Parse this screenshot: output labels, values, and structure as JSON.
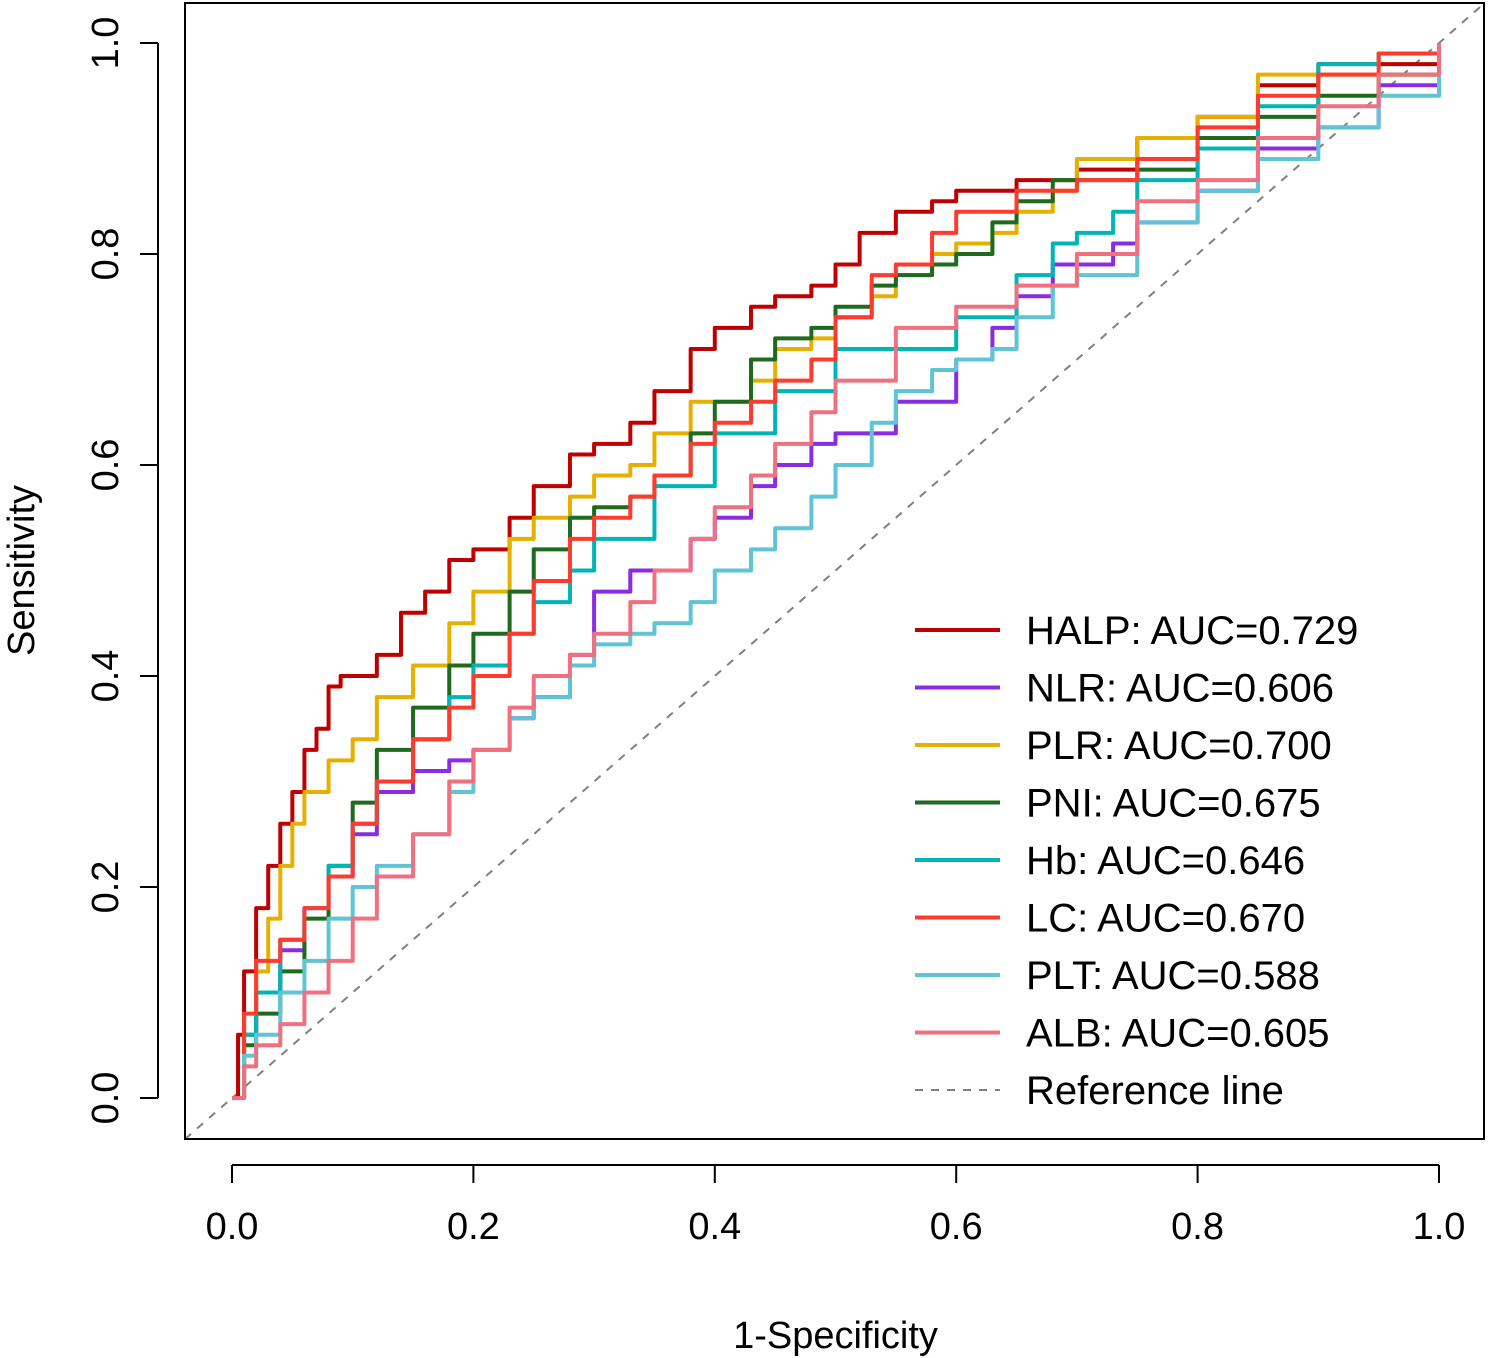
{
  "chart_data": {
    "type": "line",
    "title": "",
    "xlabel": "1-Specificity",
    "ylabel": "Sensitivity",
    "xlim": [
      0,
      1
    ],
    "ylim": [
      0,
      1
    ],
    "x_ticks": [
      "0.0",
      "0.2",
      "0.4",
      "0.6",
      "0.8",
      "1.0"
    ],
    "y_ticks": [
      "0.0",
      "0.2",
      "0.4",
      "0.6",
      "0.8",
      "1.0"
    ],
    "grid": false,
    "legend_position": "bottom-right",
    "series": [
      {
        "name": "HALP",
        "label": "HALP: AUC=0.729",
        "color": "#C00000",
        "x": [
          0,
          0.005,
          0.01,
          0.02,
          0.03,
          0.04,
          0.05,
          0.06,
          0.07,
          0.08,
          0.09,
          0.1,
          0.12,
          0.14,
          0.16,
          0.18,
          0.2,
          0.23,
          0.25,
          0.28,
          0.3,
          0.33,
          0.35,
          0.38,
          0.4,
          0.43,
          0.45,
          0.48,
          0.5,
          0.52,
          0.55,
          0.58,
          0.6,
          0.65,
          0.7,
          0.75,
          0.8,
          0.85,
          0.9,
          0.95,
          1.0
        ],
        "y": [
          0,
          0.06,
          0.12,
          0.18,
          0.22,
          0.26,
          0.29,
          0.33,
          0.35,
          0.39,
          0.4,
          0.4,
          0.42,
          0.46,
          0.48,
          0.51,
          0.52,
          0.55,
          0.58,
          0.61,
          0.62,
          0.64,
          0.67,
          0.71,
          0.73,
          0.75,
          0.76,
          0.77,
          0.79,
          0.82,
          0.84,
          0.85,
          0.86,
          0.87,
          0.88,
          0.91,
          0.93,
          0.96,
          0.98,
          0.98,
          1.0
        ]
      },
      {
        "name": "NLR",
        "label": "NLR: AUC=0.606",
        "color": "#8B2BE2",
        "x": [
          0,
          0.01,
          0.02,
          0.04,
          0.06,
          0.08,
          0.1,
          0.12,
          0.15,
          0.18,
          0.2,
          0.23,
          0.25,
          0.28,
          0.3,
          0.33,
          0.35,
          0.38,
          0.4,
          0.43,
          0.45,
          0.48,
          0.5,
          0.55,
          0.6,
          0.63,
          0.65,
          0.68,
          0.7,
          0.73,
          0.75,
          0.8,
          0.85,
          0.9,
          0.95,
          1.0
        ],
        "y": [
          0,
          0.06,
          0.1,
          0.14,
          0.18,
          0.21,
          0.25,
          0.29,
          0.31,
          0.32,
          0.33,
          0.36,
          0.38,
          0.42,
          0.48,
          0.5,
          0.5,
          0.53,
          0.55,
          0.58,
          0.6,
          0.62,
          0.63,
          0.66,
          0.7,
          0.73,
          0.76,
          0.79,
          0.79,
          0.81,
          0.83,
          0.86,
          0.9,
          0.92,
          0.96,
          1.0
        ]
      },
      {
        "name": "PLR",
        "label": "PLR: AUC=0.700",
        "color": "#E6B000",
        "x": [
          0,
          0.01,
          0.02,
          0.03,
          0.04,
          0.05,
          0.06,
          0.08,
          0.1,
          0.12,
          0.15,
          0.18,
          0.2,
          0.23,
          0.25,
          0.28,
          0.3,
          0.33,
          0.35,
          0.38,
          0.4,
          0.43,
          0.45,
          0.48,
          0.5,
          0.53,
          0.55,
          0.58,
          0.6,
          0.63,
          0.65,
          0.68,
          0.7,
          0.75,
          0.8,
          0.85,
          0.9,
          0.95,
          1.0
        ],
        "y": [
          0,
          0.06,
          0.12,
          0.17,
          0.22,
          0.26,
          0.29,
          0.32,
          0.34,
          0.38,
          0.41,
          0.45,
          0.48,
          0.53,
          0.55,
          0.57,
          0.59,
          0.6,
          0.63,
          0.66,
          0.66,
          0.68,
          0.71,
          0.72,
          0.74,
          0.76,
          0.78,
          0.8,
          0.81,
          0.82,
          0.84,
          0.86,
          0.89,
          0.91,
          0.93,
          0.97,
          0.97,
          0.97,
          0.98
        ]
      },
      {
        "name": "PNI",
        "label": "PNI: AUC=0.675",
        "color": "#1E6B1E",
        "x": [
          0,
          0.01,
          0.02,
          0.04,
          0.06,
          0.08,
          0.1,
          0.12,
          0.15,
          0.18,
          0.2,
          0.23,
          0.25,
          0.28,
          0.3,
          0.33,
          0.35,
          0.38,
          0.4,
          0.43,
          0.45,
          0.48,
          0.5,
          0.53,
          0.55,
          0.58,
          0.6,
          0.63,
          0.65,
          0.68,
          0.7,
          0.75,
          0.8,
          0.85,
          0.9,
          0.95,
          1.0
        ],
        "y": [
          0,
          0.05,
          0.08,
          0.12,
          0.17,
          0.22,
          0.28,
          0.33,
          0.37,
          0.41,
          0.44,
          0.48,
          0.52,
          0.55,
          0.56,
          0.57,
          0.59,
          0.63,
          0.66,
          0.7,
          0.72,
          0.73,
          0.75,
          0.77,
          0.78,
          0.79,
          0.8,
          0.83,
          0.85,
          0.87,
          0.87,
          0.88,
          0.91,
          0.93,
          0.95,
          0.97,
          1.0
        ]
      },
      {
        "name": "Hb",
        "label": "Hb: AUC=0.646",
        "color": "#00B5B5",
        "x": [
          0,
          0.01,
          0.02,
          0.04,
          0.06,
          0.08,
          0.1,
          0.12,
          0.15,
          0.18,
          0.2,
          0.23,
          0.25,
          0.28,
          0.3,
          0.35,
          0.4,
          0.45,
          0.5,
          0.55,
          0.6,
          0.65,
          0.68,
          0.7,
          0.73,
          0.75,
          0.8,
          0.85,
          0.9,
          0.95,
          1.0
        ],
        "y": [
          0,
          0.06,
          0.1,
          0.15,
          0.18,
          0.22,
          0.26,
          0.3,
          0.34,
          0.38,
          0.41,
          0.44,
          0.47,
          0.5,
          0.53,
          0.58,
          0.63,
          0.67,
          0.71,
          0.71,
          0.74,
          0.78,
          0.81,
          0.82,
          0.84,
          0.87,
          0.9,
          0.94,
          0.98,
          0.99,
          1.0
        ]
      },
      {
        "name": "LC",
        "label": "LC: AUC=0.670",
        "color": "#FF3B2F",
        "x": [
          0,
          0.01,
          0.02,
          0.04,
          0.06,
          0.08,
          0.1,
          0.12,
          0.15,
          0.18,
          0.2,
          0.23,
          0.25,
          0.28,
          0.3,
          0.33,
          0.35,
          0.38,
          0.4,
          0.43,
          0.45,
          0.48,
          0.5,
          0.53,
          0.55,
          0.58,
          0.6,
          0.63,
          0.65,
          0.7,
          0.75,
          0.8,
          0.85,
          0.9,
          0.95,
          1.0
        ],
        "y": [
          0,
          0.08,
          0.13,
          0.15,
          0.18,
          0.21,
          0.26,
          0.3,
          0.34,
          0.37,
          0.4,
          0.44,
          0.49,
          0.53,
          0.55,
          0.57,
          0.59,
          0.62,
          0.64,
          0.66,
          0.68,
          0.7,
          0.74,
          0.78,
          0.79,
          0.82,
          0.84,
          0.84,
          0.86,
          0.87,
          0.89,
          0.92,
          0.95,
          0.97,
          0.99,
          1.0
        ]
      },
      {
        "name": "PLT",
        "label": "PLT: AUC=0.588",
        "color": "#5EC4D6",
        "x": [
          0,
          0.01,
          0.02,
          0.04,
          0.06,
          0.08,
          0.1,
          0.12,
          0.15,
          0.18,
          0.2,
          0.23,
          0.25,
          0.28,
          0.3,
          0.33,
          0.35,
          0.38,
          0.4,
          0.43,
          0.45,
          0.48,
          0.5,
          0.53,
          0.55,
          0.58,
          0.6,
          0.63,
          0.65,
          0.68,
          0.7,
          0.75,
          0.8,
          0.85,
          0.9,
          0.95,
          1.0
        ],
        "y": [
          0,
          0.04,
          0.06,
          0.1,
          0.13,
          0.17,
          0.2,
          0.22,
          0.25,
          0.29,
          0.33,
          0.36,
          0.38,
          0.41,
          0.43,
          0.44,
          0.45,
          0.47,
          0.5,
          0.52,
          0.54,
          0.57,
          0.6,
          0.64,
          0.67,
          0.69,
          0.7,
          0.71,
          0.74,
          0.77,
          0.78,
          0.83,
          0.86,
          0.89,
          0.92,
          0.95,
          1.0
        ]
      },
      {
        "name": "ALB",
        "label": "ALB: AUC=0.605",
        "color": "#F07080",
        "x": [
          0,
          0.01,
          0.02,
          0.04,
          0.06,
          0.08,
          0.1,
          0.12,
          0.15,
          0.18,
          0.2,
          0.23,
          0.25,
          0.28,
          0.3,
          0.33,
          0.35,
          0.38,
          0.4,
          0.43,
          0.45,
          0.48,
          0.5,
          0.55,
          0.6,
          0.65,
          0.7,
          0.75,
          0.8,
          0.85,
          0.9,
          0.95,
          1.0
        ],
        "y": [
          0,
          0.03,
          0.05,
          0.07,
          0.1,
          0.13,
          0.17,
          0.21,
          0.25,
          0.3,
          0.33,
          0.37,
          0.4,
          0.42,
          0.44,
          0.47,
          0.5,
          0.53,
          0.56,
          0.59,
          0.62,
          0.65,
          0.68,
          0.73,
          0.75,
          0.77,
          0.8,
          0.85,
          0.87,
          0.91,
          0.94,
          0.97,
          1.0
        ]
      }
    ],
    "reference_line": {
      "label": "Reference line",
      "color": "#808080",
      "x": [
        0,
        1
      ],
      "y": [
        0,
        1
      ]
    }
  }
}
